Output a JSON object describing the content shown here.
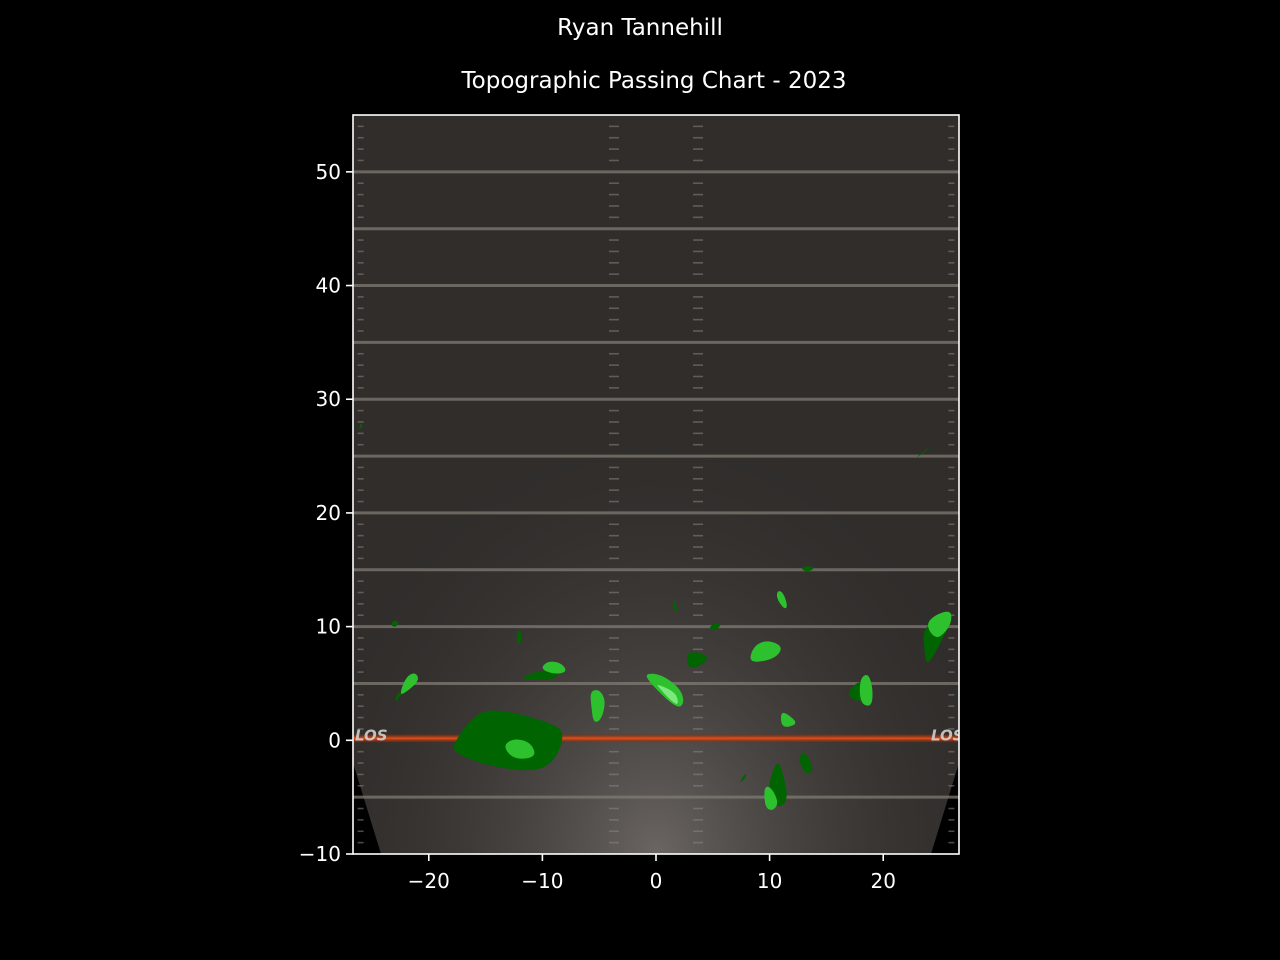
{
  "figure": {
    "suptitle": "Ryan Tannehill",
    "title": "Topographic Passing Chart - 2023"
  },
  "chart_data": {
    "type": "heatmap",
    "title": "Topographic Passing Chart - 2023",
    "suptitle": "Ryan Tannehill",
    "xlabel": "",
    "ylabel": "",
    "xlim": [
      -26.67,
      26.67
    ],
    "ylim": [
      -10,
      55
    ],
    "xticks": [
      -20,
      -10,
      0,
      10,
      20
    ],
    "yticks": [
      -10,
      0,
      10,
      20,
      30,
      40,
      50
    ],
    "xtick_labels": [
      "−20",
      "−10",
      "0",
      "10",
      "20"
    ],
    "ytick_labels": [
      "−10",
      "0",
      "10",
      "20",
      "30",
      "40",
      "50"
    ],
    "grid": false,
    "background": "football field",
    "line_of_scrimmage_y": 0,
    "field_text": [
      "LOS",
      "LOS"
    ],
    "yard_lines": [
      -5,
      5,
      10,
      15,
      20,
      25,
      30,
      35,
      40,
      45,
      50
    ],
    "colors": {
      "density_low": "#006400",
      "density_mid": "#2ec12e",
      "density_high": "#7de87d",
      "scrimmage": "#d04010",
      "field": "#302d2b"
    },
    "contour_regions": [
      {
        "x": -13,
        "y": 0,
        "level": 1,
        "points": [
          [
            -18,
            -0.5
          ],
          [
            -16,
            2.3
          ],
          [
            -14,
            2.8
          ],
          [
            -9,
            1.5
          ],
          [
            -8,
            0.5
          ],
          [
            -9,
            -2
          ],
          [
            -11,
            -2.8
          ],
          [
            -15,
            -2.2
          ],
          [
            -17.5,
            -1.2
          ]
        ]
      },
      {
        "x": -12,
        "y": -0.7,
        "level": 2,
        "points": [
          [
            -13.5,
            -0.5
          ],
          [
            -12.5,
            0.2
          ],
          [
            -11,
            -0.2
          ],
          [
            -10.5,
            -1.5
          ],
          [
            -12.5,
            -1.7
          ]
        ]
      },
      {
        "x": -22,
        "y": 4.5,
        "level": 1,
        "points": [
          [
            -23,
            3.2
          ],
          [
            -22.8,
            4.2
          ],
          [
            -21,
            5
          ],
          [
            -22.5,
            4
          ]
        ]
      },
      {
        "x": -21.7,
        "y": 5,
        "level": 2,
        "points": [
          [
            -22.6,
            4
          ],
          [
            -22,
            5.6
          ],
          [
            -21.2,
            6
          ],
          [
            -20.8,
            5.3
          ],
          [
            -22,
            4.2
          ]
        ]
      },
      {
        "x": -23,
        "y": 10.3,
        "level": 1,
        "points": [
          [
            -23.4,
            10.2
          ],
          [
            -23,
            10.6
          ],
          [
            -22.6,
            10.3
          ],
          [
            -23,
            9.9
          ]
        ]
      },
      {
        "x": -12,
        "y": 9.2,
        "level": 1,
        "points": [
          [
            -12.3,
            8.5
          ],
          [
            -12.2,
            9.8
          ],
          [
            -11.8,
            9.4
          ],
          [
            -11.9,
            8.5
          ]
        ]
      },
      {
        "x": -10,
        "y": 6,
        "level": 1,
        "points": [
          [
            -12,
            5.5
          ],
          [
            -10,
            6.2
          ],
          [
            -8.5,
            6
          ],
          [
            -9,
            5.3
          ],
          [
            -11,
            5.3
          ]
        ]
      },
      {
        "x": -9.2,
        "y": 6.4,
        "level": 2,
        "points": [
          [
            -10.2,
            6.3
          ],
          [
            -9.5,
            7
          ],
          [
            -8.3,
            6.8
          ],
          [
            -7.8,
            6
          ],
          [
            -9,
            5.8
          ]
        ]
      },
      {
        "x": -5.2,
        "y": 3,
        "level": 2,
        "points": [
          [
            -5.8,
            4.3
          ],
          [
            -5,
            4.5
          ],
          [
            -4.4,
            3.5
          ],
          [
            -4.8,
            1.8
          ],
          [
            -5.5,
            1.5
          ],
          [
            -5.7,
            3
          ]
        ]
      },
      {
        "x": 1,
        "y": 4.5,
        "level": 2,
        "points": [
          [
            -1,
            5.9
          ],
          [
            0.5,
            5.8
          ],
          [
            2.2,
            4.5
          ],
          [
            2.5,
            3.2
          ],
          [
            1.8,
            2.8
          ],
          [
            -0.5,
            5
          ]
        ]
      },
      {
        "x": 1.5,
        "y": 4.2,
        "level": 3,
        "points": [
          [
            0,
            5
          ],
          [
            1.8,
            4.2
          ],
          [
            2,
            3
          ],
          [
            1.2,
            3.6
          ],
          [
            0.3,
            4.6
          ]
        ]
      },
      {
        "x": 1.7,
        "y": 11.8,
        "level": 1,
        "points": [
          [
            1.4,
            12.5
          ],
          [
            1.8,
            12
          ],
          [
            1.9,
            11.2
          ],
          [
            1.6,
            11.5
          ]
        ]
      },
      {
        "x": 3.6,
        "y": 7.3,
        "level": 1,
        "points": [
          [
            2.7,
            7.8
          ],
          [
            4,
            7.7
          ],
          [
            4.7,
            7.2
          ],
          [
            3.8,
            6.5
          ],
          [
            2.8,
            6.3
          ]
        ]
      },
      {
        "x": 5.2,
        "y": 10,
        "level": 1,
        "points": [
          [
            4.6,
            9.9
          ],
          [
            5.3,
            10.4
          ],
          [
            5.8,
            10.2
          ],
          [
            5.2,
            9.6
          ]
        ]
      },
      {
        "x": 9.8,
        "y": 8,
        "level": 2,
        "points": [
          [
            8.2,
            7.3
          ],
          [
            8.8,
            8.5
          ],
          [
            10,
            8.8
          ],
          [
            11.2,
            8.2
          ],
          [
            10.5,
            7.2
          ],
          [
            8.6,
            6.8
          ]
        ]
      },
      {
        "x": 11.2,
        "y": 12.5,
        "level": 2,
        "points": [
          [
            10.7,
            13.2
          ],
          [
            11.2,
            13
          ],
          [
            11.6,
            11.8
          ],
          [
            11.3,
            11.5
          ],
          [
            10.6,
            12.5
          ]
        ]
      },
      {
        "x": 13.3,
        "y": 15.1,
        "level": 1,
        "points": [
          [
            12.7,
            15.1
          ],
          [
            13.4,
            15.4
          ],
          [
            14,
            15.1
          ],
          [
            13.3,
            14.8
          ]
        ]
      },
      {
        "x": 23.5,
        "y": 25.3,
        "level": 1,
        "points": [
          [
            22.8,
            24.8
          ],
          [
            23.8,
            25.6
          ],
          [
            24.2,
            25.8
          ],
          [
            23.3,
            25.1
          ]
        ]
      },
      {
        "x": 24.3,
        "y": 9,
        "level": 1,
        "points": [
          [
            23.5,
            10
          ],
          [
            26,
            11.2
          ],
          [
            26,
            10.5
          ],
          [
            24.5,
            7.5
          ],
          [
            23.8,
            6.6
          ],
          [
            23.6,
            8
          ]
        ]
      },
      {
        "x": 24.8,
        "y": 10.2,
        "level": 2,
        "points": [
          [
            23.8,
            10.2
          ],
          [
            24.5,
            11
          ],
          [
            26,
            11.5
          ],
          [
            26,
            10.2
          ],
          [
            25,
            9
          ],
          [
            24.3,
            9.2
          ]
        ]
      },
      {
        "x": 18,
        "y": 4.5,
        "level": 1,
        "points": [
          [
            16.8,
            4
          ],
          [
            17.5,
            5
          ],
          [
            18.5,
            5.3
          ],
          [
            19,
            4
          ],
          [
            17.8,
            3.3
          ]
        ]
      },
      {
        "x": 18.6,
        "y": 4.5,
        "level": 2,
        "points": [
          [
            18,
            5.5
          ],
          [
            18.7,
            5.9
          ],
          [
            19.1,
            4.5
          ],
          [
            19,
            3
          ],
          [
            18.2,
            3.1
          ],
          [
            17.9,
            4
          ]
        ]
      },
      {
        "x": 11.6,
        "y": 1.8,
        "level": 2,
        "points": [
          [
            11,
            2.5
          ],
          [
            11.6,
            2.3
          ],
          [
            12.5,
            1.5
          ],
          [
            11.5,
            1.1
          ],
          [
            11,
            1.4
          ]
        ]
      },
      {
        "x": 13.2,
        "y": -2,
        "level": 1,
        "points": [
          [
            12.8,
            -0.9
          ],
          [
            13.4,
            -1.4
          ],
          [
            13.9,
            -2.7
          ],
          [
            13.2,
            -3
          ],
          [
            12.6,
            -2
          ]
        ]
      },
      {
        "x": 10.8,
        "y": -4,
        "level": 1,
        "points": [
          [
            10,
            -3.5
          ],
          [
            10.6,
            -1.9
          ],
          [
            11,
            -2.2
          ],
          [
            11.7,
            -5.2
          ],
          [
            10.8,
            -6
          ],
          [
            9.9,
            -5
          ]
        ]
      },
      {
        "x": 10,
        "y": -5,
        "level": 2,
        "points": [
          [
            9.6,
            -4
          ],
          [
            10.2,
            -4.2
          ],
          [
            10.8,
            -5.5
          ],
          [
            10.3,
            -6.2
          ],
          [
            9.7,
            -6
          ],
          [
            9.5,
            -5
          ]
        ]
      },
      {
        "x": 7.6,
        "y": -3.2,
        "level": 1,
        "points": [
          [
            7.4,
            -3.6
          ],
          [
            7.9,
            -2.8
          ],
          [
            7.9,
            -3.3
          ],
          [
            7.5,
            -3.7
          ]
        ]
      },
      {
        "x": -26,
        "y": 27.6,
        "level": 1,
        "points": [
          [
            -26.2,
            27.4
          ],
          [
            -26,
            27.9
          ],
          [
            -25.8,
            27.7
          ],
          [
            -26,
            27.4
          ]
        ]
      }
    ]
  }
}
